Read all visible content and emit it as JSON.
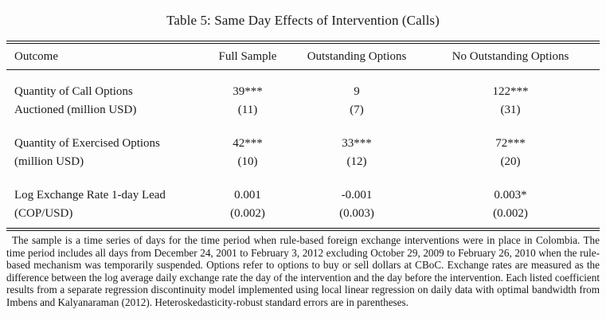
{
  "title": "Table 5: Same Day Effects of Intervention (Calls)",
  "table": {
    "columns": [
      "Outcome",
      "Full Sample",
      "Outstanding Options",
      "No Outstanding Options"
    ],
    "rows": [
      {
        "outcome_line1": "Quantity of Call Options",
        "outcome_line2": "Auctioned (million USD)",
        "cells": [
          {
            "coef": "39***",
            "se": "(11)"
          },
          {
            "coef": "9",
            "se": "(7)"
          },
          {
            "coef": "122***",
            "se": "(31)"
          }
        ]
      },
      {
        "outcome_line1": "Quantity of Exercised Options",
        "outcome_line2": "(million USD)",
        "cells": [
          {
            "coef": "42***",
            "se": "(10)"
          },
          {
            "coef": "33***",
            "se": "(12)"
          },
          {
            "coef": "72***",
            "se": "(20)"
          }
        ]
      },
      {
        "outcome_line1": "Log Exchange Rate 1-day Lead",
        "outcome_line2": "(COP/USD)",
        "cells": [
          {
            "coef": "0.001",
            "se": "(0.002)"
          },
          {
            "coef": "-0.001",
            "se": "(0.003)"
          },
          {
            "coef": "0.003*",
            "se": "(0.002)"
          }
        ]
      }
    ]
  },
  "footnote": "The sample is a time series of days for the time period when rule-based foreign exchange interventions were in place in Colombia. The time period includes all days from December 24, 2001 to February 3, 2012 excluding October 29, 2009 to February 26, 2010 when the rule-based mechanism was temporarily suspended. Options refer to options to buy or sell dollars at CBoC. Exchange rates are measured as the difference between the log average daily exchange rate the day of the intervention and the day before the intervention. Each listed coefficient results from a separate regression discontinuity model implemented using local linear regression on daily data with optimal bandwidth from Imbens and Kalyanaraman (2012). Heteroskedasticity-robust standard errors are in parentheses.",
  "colors": {
    "text": "#1b1b1b",
    "background": "#fdfdfd",
    "rule": "#1b1b1b"
  }
}
